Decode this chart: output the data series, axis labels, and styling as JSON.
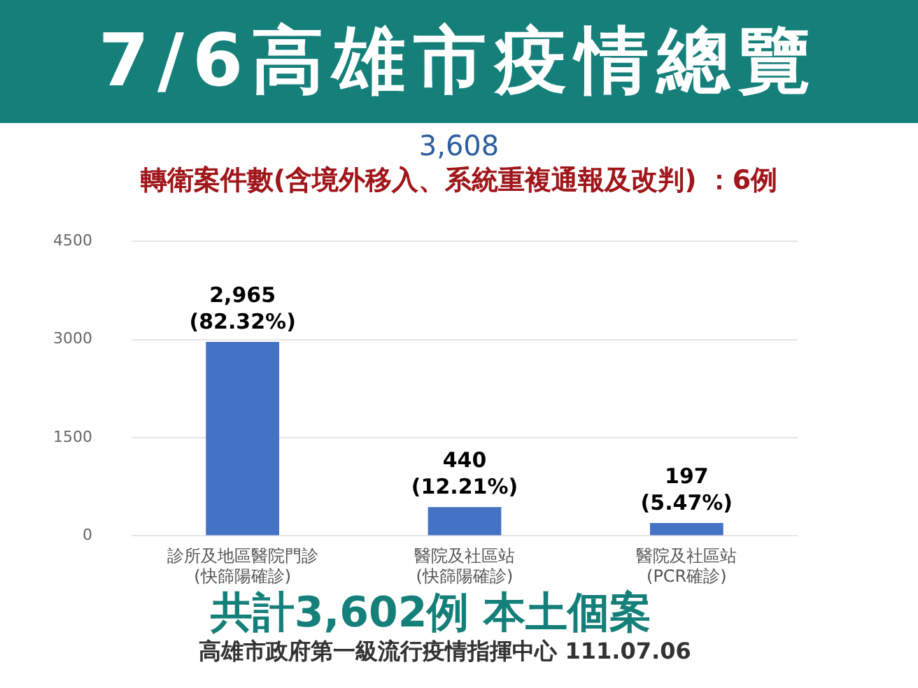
{
  "chart_data": {
    "type": "bar",
    "title": "7/6高雄市疫情總覽",
    "subtitle": "3,608",
    "annotations": [
      "轉衛案件數(含境外移入、系統重複通報及改判) ：6例",
      "共計3,602例 本土個案",
      "高雄市政府第一級流行疫情指揮中心 111.07.06"
    ],
    "categories": [
      "診所及地區醫院門診\n(快篩陽確診)",
      "醫院及社區站\n(快篩陽確診)",
      "醫院及社區站\n(PCR確診)"
    ],
    "values": [
      2965,
      440,
      197
    ],
    "value_labels": [
      "2,965\n(82.32%)",
      "440\n(12.21%)",
      "197\n(5.47%)"
    ],
    "color": "#4472c4",
    "ylim": [
      0,
      4500
    ],
    "yticks": [
      0,
      1500,
      3000,
      4500
    ],
    "grid": "y"
  }
}
